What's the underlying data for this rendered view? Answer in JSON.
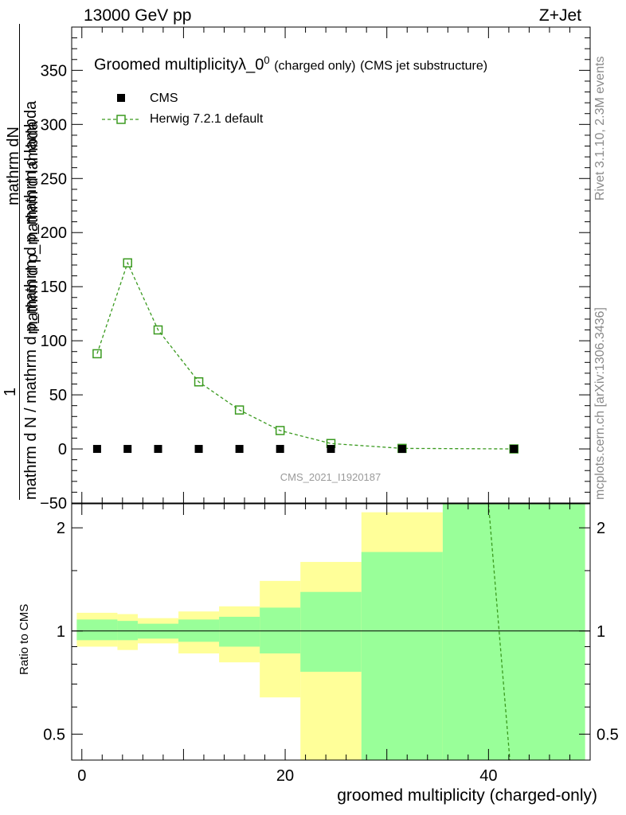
{
  "header": {
    "energy": "13000 GeV pp",
    "process": "Z+Jet"
  },
  "side_labels": {
    "rivet": "Rivet 3.1.10,  2.3M events",
    "mcplots": "mcplots.cern.ch [arXiv:1306.3436]"
  },
  "colors": {
    "mc": "#3a9a1f",
    "band_inner": "#99ff99",
    "band_outer": "#ffff99",
    "data": "#000000",
    "watermark": "#9a9a9a"
  },
  "chart_data": [
    {
      "type": "line",
      "title_main": "Groomed multiplicityλ_0",
      "title_sup": "0",
      "title_small": "(charged only)",
      "title_tail": "(CMS jet substructure)",
      "ylabel_line1": "mathrm d N / mathrm d p_mathrm d p_mathrm d lambda",
      "ylabel_frac": "1",
      "ylabel_num": "mathrm dN",
      "ylabel_num2": "mathrm d p_mathrm d lambda",
      "watermark": "CMS_2021_I1920187",
      "xlim": [
        -1,
        50
      ],
      "ylim": [
        -50,
        390
      ],
      "yticks": [
        -50,
        0,
        50,
        100,
        150,
        200,
        250,
        300,
        350
      ],
      "ytick_labels": [
        "−50",
        "0",
        "50",
        "100",
        "150",
        "200",
        "250",
        "300",
        "350"
      ],
      "legend": [
        {
          "name": "CMS",
          "marker": "filled-square"
        },
        {
          "name": "Herwig 7.2.1 default",
          "marker": "open-square-dashed"
        }
      ],
      "series": [
        {
          "name": "CMS",
          "x": [
            1.5,
            4.5,
            7.5,
            11.5,
            15.5,
            19.5,
            24.5,
            31.5,
            42.5
          ],
          "values": [
            0,
            0,
            0,
            0,
            0,
            0,
            0,
            0,
            0
          ]
        },
        {
          "name": "Herwig 7.2.1 default",
          "x": [
            1.5,
            4.5,
            7.5,
            11.5,
            15.5,
            19.5,
            24.5,
            31.5,
            42.5
          ],
          "values": [
            88,
            172,
            110,
            62,
            36,
            17,
            5,
            0.5,
            0
          ]
        }
      ]
    },
    {
      "type": "line",
      "ylabel": "Ratio to CMS",
      "xlabel": "groomed multiplicity (charged-only)",
      "xlim": [
        -1,
        50
      ],
      "ylim": [
        0.42,
        2.35
      ],
      "scale": "log",
      "xticks": [
        0,
        20,
        40
      ],
      "xtick_labels": [
        "0",
        "20",
        "40"
      ],
      "yticks": [
        0.5,
        1,
        2
      ],
      "ytick_labels": [
        "0.5",
        "1",
        "2"
      ],
      "bands": [
        {
          "x0": -0.5,
          "x1": 3.5,
          "inner": [
            0.94,
            1.08
          ],
          "outer": [
            0.9,
            1.13
          ]
        },
        {
          "x0": 3.5,
          "x1": 5.5,
          "inner": [
            0.94,
            1.07
          ],
          "outer": [
            0.88,
            1.12
          ]
        },
        {
          "x0": 5.5,
          "x1": 9.5,
          "inner": [
            0.95,
            1.05
          ],
          "outer": [
            0.92,
            1.09
          ]
        },
        {
          "x0": 9.5,
          "x1": 13.5,
          "inner": [
            0.93,
            1.08
          ],
          "outer": [
            0.86,
            1.14
          ]
        },
        {
          "x0": 13.5,
          "x1": 17.5,
          "inner": [
            0.9,
            1.1
          ],
          "outer": [
            0.81,
            1.18
          ]
        },
        {
          "x0": 17.5,
          "x1": 21.5,
          "inner": [
            0.86,
            1.17
          ],
          "outer": [
            0.64,
            1.4
          ]
        },
        {
          "x0": 21.5,
          "x1": 27.5,
          "inner": [
            0.76,
            1.3
          ],
          "outer": [
            0.42,
            1.59
          ]
        },
        {
          "x0": 27.5,
          "x1": 35.5,
          "inner": [
            0.42,
            1.7
          ],
          "outer": [
            0.42,
            2.22
          ]
        },
        {
          "x0": 35.5,
          "x1": 49.5,
          "inner": [
            0.42,
            2.35
          ],
          "outer": [
            0.42,
            2.35
          ]
        }
      ],
      "series": [
        {
          "name": "Herwig/CMS",
          "x": [
            40,
            42.1
          ],
          "values": [
            2.35,
            0.42
          ]
        }
      ]
    }
  ]
}
